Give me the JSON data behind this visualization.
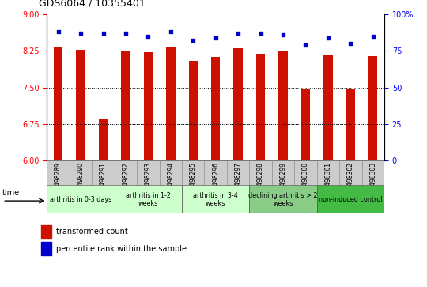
{
  "title": "GDS6064 / 10355401",
  "samples": [
    "GSM1498289",
    "GSM1498290",
    "GSM1498291",
    "GSM1498292",
    "GSM1498293",
    "GSM1498294",
    "GSM1498295",
    "GSM1498296",
    "GSM1498297",
    "GSM1498298",
    "GSM1498299",
    "GSM1498300",
    "GSM1498301",
    "GSM1498302",
    "GSM1498303"
  ],
  "bar_values": [
    8.32,
    8.27,
    6.85,
    8.25,
    8.22,
    8.32,
    8.05,
    8.13,
    8.3,
    8.19,
    8.25,
    7.47,
    8.17,
    7.47,
    8.15
  ],
  "percentile_values": [
    88,
    87,
    87,
    87,
    85,
    88,
    82,
    84,
    87,
    87,
    86,
    79,
    84,
    80,
    85
  ],
  "bar_color": "#CC1100",
  "percentile_color": "#0000CC",
  "ylim_left": [
    6,
    9
  ],
  "ylim_right": [
    0,
    100
  ],
  "yticks_left": [
    6,
    6.75,
    7.5,
    8.25,
    9
  ],
  "yticks_right": [
    0,
    25,
    50,
    75,
    100
  ],
  "ytick_labels_right": [
    "0",
    "25",
    "50",
    "75",
    "100%"
  ],
  "grid_lines": [
    6.75,
    7.5,
    8.25
  ],
  "pct_grid_lines": [
    25,
    75
  ],
  "group_defs": [
    {
      "start": 0,
      "end": 3,
      "color": "#ccffcc",
      "label": "arthritis in 0-3 days"
    },
    {
      "start": 3,
      "end": 6,
      "color": "#ccffcc",
      "label": "arthritis in 1-2\nweeks"
    },
    {
      "start": 6,
      "end": 9,
      "color": "#ccffcc",
      "label": "arthritis in 3-4\nweeks"
    },
    {
      "start": 9,
      "end": 12,
      "color": "#88cc88",
      "label": "declining arthritis > 2\nweeks"
    },
    {
      "start": 12,
      "end": 15,
      "color": "#44bb44",
      "label": "non-induced control"
    }
  ],
  "time_label": "time",
  "legend_bar_label": "transformed count",
  "legend_pct_label": "percentile rank within the sample",
  "sample_cell_color": "#cccccc",
  "bar_width": 0.4
}
